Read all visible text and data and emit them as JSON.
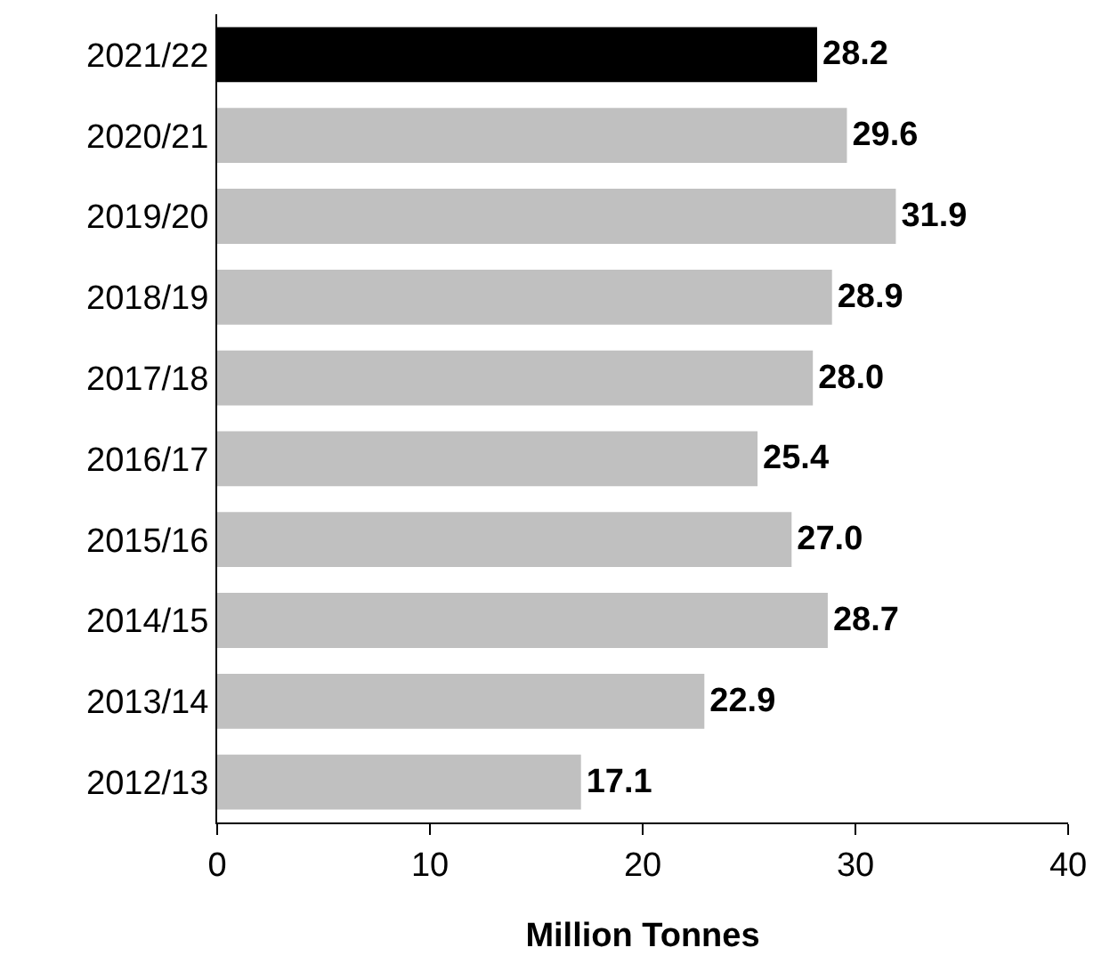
{
  "chart_data": {
    "type": "bar",
    "orientation": "horizontal",
    "xlabel": "Million Tonnes",
    "categories": [
      "2021/22",
      "2020/21",
      "2019/20",
      "2018/19",
      "2017/18",
      "2016/17",
      "2015/16",
      "2014/15",
      "2013/14",
      "2012/13"
    ],
    "values": [
      28.2,
      29.6,
      31.9,
      28.9,
      28.0,
      25.4,
      27.0,
      28.7,
      22.9,
      17.1
    ],
    "value_labels": [
      "28.2",
      "29.6",
      "31.9",
      "28.9",
      "28.0",
      "25.4",
      "27.0",
      "28.7",
      "22.9",
      "17.1"
    ],
    "colors": [
      "#000000",
      "#c0c0c0",
      "#c0c0c0",
      "#c0c0c0",
      "#c0c0c0",
      "#c0c0c0",
      "#c0c0c0",
      "#c0c0c0",
      "#c0c0c0",
      "#c0c0c0"
    ],
    "xlim": [
      0,
      40
    ],
    "xticks": [
      0,
      10,
      20,
      30,
      40
    ],
    "grid": false
  }
}
